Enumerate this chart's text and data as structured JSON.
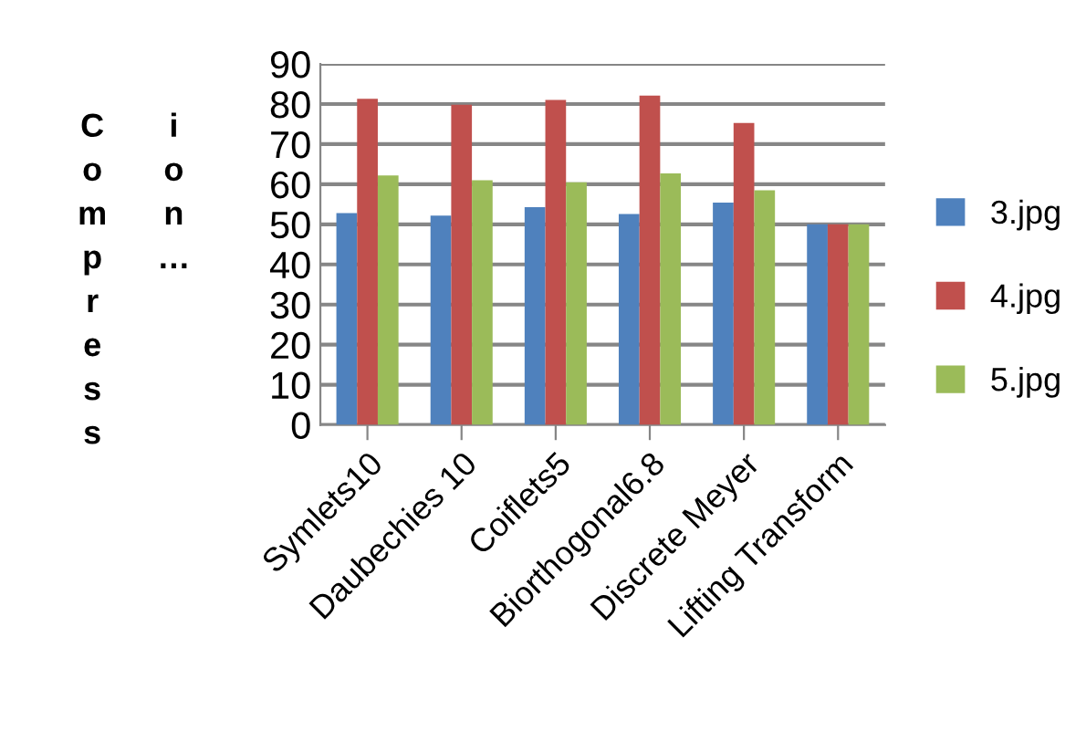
{
  "chart_data": {
    "type": "bar",
    "ylabel": "Compression…",
    "categories": [
      "Symlets10",
      "Daubechies 10",
      "Coiflets5",
      "Biorthogonal6.8",
      "Discrete Meyer",
      "Lifting Transform"
    ],
    "series": [
      {
        "name": "3.jpg",
        "color": "#4f81bd",
        "values": [
          52.8,
          52.2,
          54.3,
          52.6,
          55.4,
          50
        ]
      },
      {
        "name": "4.jpg",
        "color": "#c0504d",
        "values": [
          81.3,
          79.8,
          81.0,
          82.1,
          75.3,
          50
        ]
      },
      {
        "name": "5.jpg",
        "color": "#9bbb59",
        "values": [
          62.2,
          61.0,
          60.5,
          62.7,
          58.5,
          50
        ]
      }
    ],
    "ylim": [
      0,
      90
    ],
    "yticks": [
      0,
      10,
      20,
      30,
      40,
      50,
      60,
      70,
      80,
      90
    ],
    "grid": "y",
    "legend": "right"
  }
}
